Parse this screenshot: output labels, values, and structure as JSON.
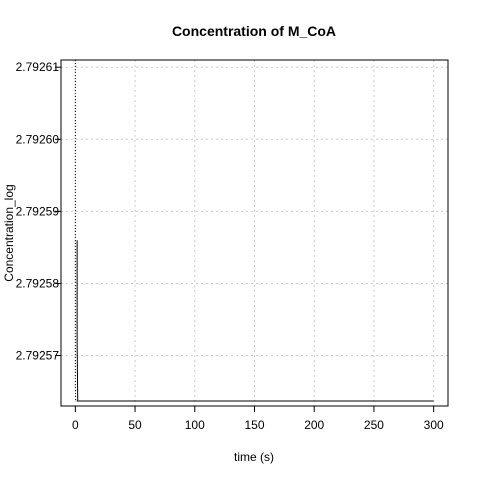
{
  "chart_data": {
    "type": "line",
    "title": "Concentration of M_CoA",
    "xlabel": "time (s)",
    "ylabel": "Concentration_log",
    "xlim": [
      -12,
      312
    ],
    "ylim": [
      2.792563,
      2.792611
    ],
    "x_ticks": [
      0,
      50,
      100,
      150,
      200,
      250,
      300
    ],
    "x_tick_labels": [
      "0",
      "50",
      "100",
      "150",
      "200",
      "250",
      "300"
    ],
    "y_ticks": [
      2.79257,
      2.79258,
      2.79259,
      2.7926,
      2.79261
    ],
    "y_tick_labels": [
      "2.79257",
      "2.79258",
      "2.79259",
      "2.79260",
      "2.79261"
    ],
    "grid": true,
    "series": [
      {
        "style": "solid",
        "x": [
          1.5,
          1.5,
          2,
          300
        ],
        "y": [
          2.792586,
          2.792572,
          2.7925637,
          2.7925637
        ]
      },
      {
        "style": "dotted",
        "x": [
          0,
          0,
          0.3,
          300
        ],
        "y": [
          2.792611,
          2.792566,
          2.7925637,
          2.7925637
        ]
      }
    ]
  }
}
